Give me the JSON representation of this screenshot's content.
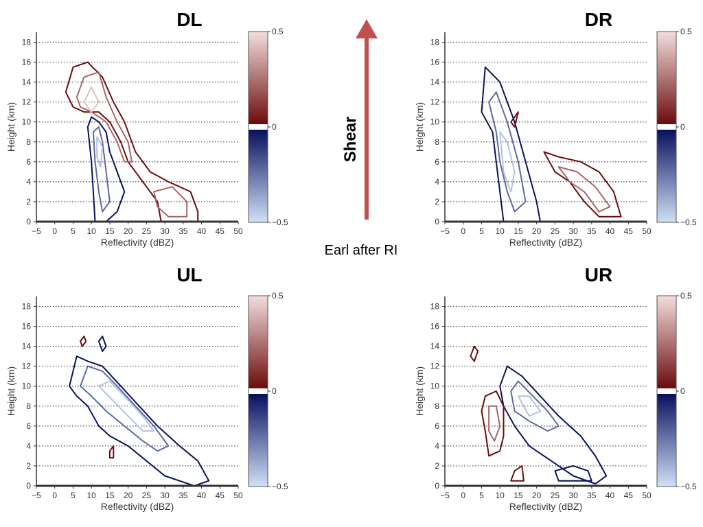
{
  "annotations": {
    "shear_label": "Shear",
    "figure_caption": "Earl after RI",
    "arrow_color": "#c0504d"
  },
  "axes": {
    "xlabel": "Reflectivity (dBZ)",
    "ylabel": "Height (km)",
    "xlim": [
      -5,
      50
    ],
    "ylim": [
      0,
      19
    ],
    "xticks": [
      -5,
      0,
      5,
      10,
      15,
      20,
      25,
      30,
      35,
      40,
      45,
      50
    ],
    "yticks": [
      0,
      2,
      4,
      6,
      8,
      10,
      12,
      14,
      16,
      18
    ],
    "grid": "dotted horizontal"
  },
  "colorbar": {
    "ticks": [
      "0.5",
      "0",
      "−0.5"
    ],
    "min": -0.5,
    "max": 0.5,
    "pos_dark": "#6b0b0b",
    "pos_light": "#f4dede",
    "neg_dark": "#08105e",
    "neg_light": "#cfe0f7"
  },
  "chart_data": [
    {
      "type": "contour",
      "title": "DL",
      "contours": [
        {
          "sign": "negative",
          "level": 0.1,
          "points": [
            [
              9,
              9.5
            ],
            [
              10,
              6
            ],
            [
              10.5,
              3
            ],
            [
              11,
              0
            ],
            [
              14,
              0
            ],
            [
              17,
              1
            ],
            [
              19,
              3
            ],
            [
              17,
              5
            ],
            [
              15,
              7
            ],
            [
              14,
              9
            ],
            [
              12,
              10
            ],
            [
              10,
              10.5
            ]
          ]
        },
        {
          "sign": "negative",
          "level": 0.25,
          "points": [
            [
              10.5,
              9
            ],
            [
              11,
              6
            ],
            [
              12,
              3
            ],
            [
              13,
              1
            ],
            [
              15,
              2
            ],
            [
              14,
              5
            ],
            [
              13,
              8
            ],
            [
              12,
              9.5
            ]
          ]
        },
        {
          "sign": "negative",
          "level": 0.4,
          "points": [
            [
              11.5,
              8.5
            ],
            [
              11.5,
              6.5
            ],
            [
              12.5,
              5.5
            ],
            [
              13,
              7.5
            ]
          ]
        },
        {
          "sign": "positive",
          "level": 0.1,
          "points": [
            [
              3,
              13
            ],
            [
              5,
              15.5
            ],
            [
              9,
              16
            ],
            [
              13,
              14.5
            ],
            [
              16,
              12
            ],
            [
              19,
              10
            ],
            [
              22,
              7
            ],
            [
              26,
              5
            ],
            [
              31,
              4
            ],
            [
              37,
              3
            ],
            [
              39,
              1
            ],
            [
              39,
              0
            ],
            [
              29,
              0
            ],
            [
              28,
              2
            ],
            [
              24,
              4
            ],
            [
              20,
              6
            ],
            [
              18,
              8
            ],
            [
              15,
              10
            ],
            [
              12,
              11
            ],
            [
              8,
              11
            ],
            [
              5,
              11.5
            ]
          ]
        },
        {
          "sign": "positive",
          "level": 0.25,
          "points": [
            [
              6,
              12.5
            ],
            [
              8,
              14.5
            ],
            [
              12,
              15
            ],
            [
              14,
              12.5
            ],
            [
              17,
              10
            ],
            [
              20,
              8
            ],
            [
              21,
              6
            ],
            [
              19,
              6
            ],
            [
              17,
              8
            ],
            [
              14,
              10
            ],
            [
              10,
              11
            ],
            [
              7,
              11.5
            ]
          ]
        },
        {
          "sign": "positive",
          "level": 0.25,
          "points": [
            [
              27,
              3
            ],
            [
              32,
              3.5
            ],
            [
              36,
              2
            ],
            [
              36,
              0.5
            ],
            [
              31,
              0.5
            ],
            [
              28,
              1.5
            ]
          ]
        },
        {
          "sign": "positive",
          "level": 0.4,
          "points": [
            [
              8,
              12
            ],
            [
              10,
              13.5
            ],
            [
              12,
              12
            ],
            [
              10,
              11
            ]
          ]
        }
      ]
    },
    {
      "type": "contour",
      "title": "DR",
      "contours": [
        {
          "sign": "negative",
          "level": 0.1,
          "points": [
            [
              5,
              11
            ],
            [
              6,
              15.5
            ],
            [
              10,
              14
            ],
            [
              12,
              12
            ],
            [
              14,
              10
            ],
            [
              17,
              6
            ],
            [
              20,
              2
            ],
            [
              21,
              0
            ],
            [
              11,
              0
            ],
            [
              10,
              3
            ],
            [
              9,
              6
            ],
            [
              8,
              9
            ]
          ]
        },
        {
          "sign": "negative",
          "level": 0.25,
          "points": [
            [
              7,
              12
            ],
            [
              9,
              13
            ],
            [
              12,
              10
            ],
            [
              15,
              6
            ],
            [
              17,
              2
            ],
            [
              14,
              1
            ],
            [
              12,
              3
            ],
            [
              10,
              6
            ],
            [
              9,
              9
            ]
          ]
        },
        {
          "sign": "negative",
          "level": 0.4,
          "points": [
            [
              10,
              9
            ],
            [
              12,
              8
            ],
            [
              14,
              5
            ],
            [
              13,
              3
            ],
            [
              11,
              5
            ]
          ]
        },
        {
          "sign": "positive",
          "level": 0.1,
          "points": [
            [
              22,
              7
            ],
            [
              26,
              6.5
            ],
            [
              32,
              6
            ],
            [
              37,
              5
            ],
            [
              41,
              3
            ],
            [
              43,
              0.5
            ],
            [
              37,
              0.5
            ],
            [
              33,
              2
            ],
            [
              29,
              4
            ],
            [
              25,
              5
            ]
          ]
        },
        {
          "sign": "positive",
          "level": 0.25,
          "points": [
            [
              26,
              5.5
            ],
            [
              31,
              5
            ],
            [
              36,
              3.5
            ],
            [
              40,
              1.5
            ],
            [
              37,
              1
            ],
            [
              33,
              3
            ],
            [
              29,
              4
            ]
          ]
        },
        {
          "sign": "positive",
          "level": 0.1,
          "points": [
            [
              13,
              10
            ],
            [
              14,
              10.5
            ],
            [
              15,
              11
            ],
            [
              14,
              9.5
            ]
          ]
        }
      ]
    },
    {
      "type": "contour",
      "title": "UL",
      "contours": [
        {
          "sign": "negative",
          "level": 0.1,
          "points": [
            [
              4,
              10
            ],
            [
              6,
              13
            ],
            [
              9,
              12.5
            ],
            [
              13,
              12
            ],
            [
              18,
              10
            ],
            [
              23,
              8
            ],
            [
              28,
              6
            ],
            [
              34,
              4
            ],
            [
              39,
              2.5
            ],
            [
              42,
              0.5
            ],
            [
              38,
              0
            ],
            [
              30,
              1
            ],
            [
              25,
              2.5
            ],
            [
              20,
              4
            ],
            [
              15,
              5
            ],
            [
              12,
              6
            ],
            [
              9,
              8
            ],
            [
              6,
              9
            ]
          ]
        },
        {
          "sign": "negative",
          "level": 0.25,
          "points": [
            [
              7,
              10
            ],
            [
              9,
              12
            ],
            [
              13,
              11.5
            ],
            [
              17,
              10
            ],
            [
              22,
              8
            ],
            [
              27,
              6
            ],
            [
              31,
              4
            ],
            [
              28,
              3.5
            ],
            [
              24,
              4.5
            ],
            [
              19,
              6
            ],
            [
              14,
              7.5
            ],
            [
              10,
              9
            ]
          ]
        },
        {
          "sign": "negative",
          "level": 0.4,
          "points": [
            [
              12,
              10
            ],
            [
              15,
              10.5
            ],
            [
              19,
              9
            ],
            [
              24,
              7
            ],
            [
              27,
              5.5
            ],
            [
              24,
              5.5
            ],
            [
              20,
              7
            ],
            [
              16,
              8.5
            ]
          ]
        },
        {
          "sign": "negative",
          "level": 0.1,
          "points": [
            [
              12,
              14.5
            ],
            [
              13,
              15
            ],
            [
              14,
              14
            ],
            [
              13,
              13.5
            ]
          ]
        },
        {
          "sign": "positive",
          "level": 0.1,
          "points": [
            [
              7,
              14.5
            ],
            [
              8,
              15
            ],
            [
              8.5,
              14.5
            ],
            [
              7.5,
              14
            ]
          ]
        },
        {
          "sign": "positive",
          "level": 0.1,
          "points": [
            [
              15,
              3.5
            ],
            [
              16,
              4
            ],
            [
              16,
              2.8
            ],
            [
              15,
              2.8
            ]
          ]
        }
      ]
    },
    {
      "type": "contour",
      "title": "UR",
      "contours": [
        {
          "sign": "negative",
          "level": 0.1,
          "points": [
            [
              10,
              10
            ],
            [
              12,
              12
            ],
            [
              16,
              11
            ],
            [
              21,
              9
            ],
            [
              26,
              7
            ],
            [
              32,
              5
            ],
            [
              36,
              3
            ],
            [
              39,
              1
            ],
            [
              36,
              0.2
            ],
            [
              30,
              1
            ],
            [
              24,
              2.5
            ],
            [
              18,
              4
            ],
            [
              14,
              6
            ],
            [
              11,
              8
            ]
          ]
        },
        {
          "sign": "negative",
          "level": 0.25,
          "points": [
            [
              13,
              9.5
            ],
            [
              15,
              10.5
            ],
            [
              19,
              9
            ],
            [
              23,
              7.5
            ],
            [
              26,
              6
            ],
            [
              23,
              5.5
            ],
            [
              18,
              6.5
            ],
            [
              14,
              7.5
            ]
          ]
        },
        {
          "sign": "negative",
          "level": 0.4,
          "points": [
            [
              15,
              9
            ],
            [
              18,
              9
            ],
            [
              21,
              7.5
            ],
            [
              18,
              7
            ]
          ]
        },
        {
          "sign": "negative",
          "level": 0.1,
          "points": [
            [
              25,
              1.5
            ],
            [
              30,
              2
            ],
            [
              34,
              1.5
            ],
            [
              35,
              0.5
            ],
            [
              26,
              0.5
            ]
          ]
        },
        {
          "sign": "positive",
          "level": 0.1,
          "points": [
            [
              6,
              9
            ],
            [
              9,
              9.5
            ],
            [
              11,
              8
            ],
            [
              11,
              5
            ],
            [
              10,
              3.5
            ],
            [
              7,
              3
            ],
            [
              6,
              5.5
            ],
            [
              5,
              7.5
            ]
          ]
        },
        {
          "sign": "positive",
          "level": 0.25,
          "points": [
            [
              7,
              8
            ],
            [
              9,
              8
            ],
            [
              10,
              6
            ],
            [
              8.5,
              4.5
            ],
            [
              7,
              5.5
            ]
          ]
        },
        {
          "sign": "positive",
          "level": 0.1,
          "points": [
            [
              2,
              13
            ],
            [
              3,
              14
            ],
            [
              4,
              13.5
            ],
            [
              3,
              12.5
            ]
          ]
        },
        {
          "sign": "positive",
          "level": 0.1,
          "points": [
            [
              13,
              0.5
            ],
            [
              14,
              1.5
            ],
            [
              16,
              2
            ],
            [
              16.5,
              0.5
            ]
          ]
        }
      ]
    }
  ]
}
